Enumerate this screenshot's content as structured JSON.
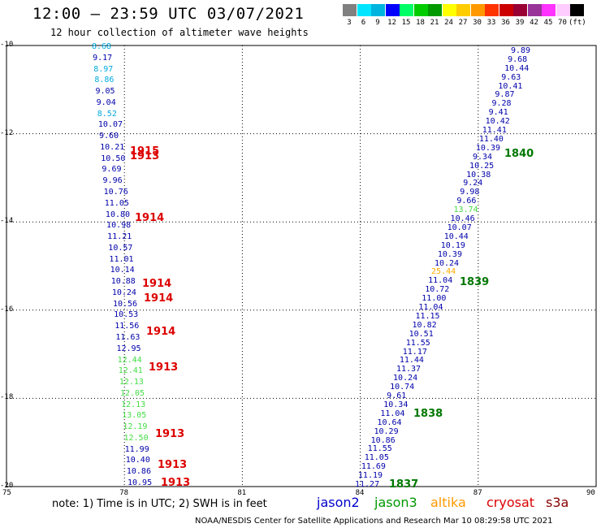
{
  "title": "12:00 – 23:59 UTC 03/07/2021",
  "subtitle": "12 hour collection of altimeter wave heights",
  "scale": {
    "boxes": [
      {
        "color": "#808080",
        "label": "3"
      },
      {
        "color": "#00e5ff",
        "label": "6"
      },
      {
        "color": "#00b4e0",
        "label": "9"
      },
      {
        "color": "#0000ff",
        "label": "12"
      },
      {
        "color": "#00ff66",
        "label": "15"
      },
      {
        "color": "#00cc00",
        "label": "18"
      },
      {
        "color": "#009900",
        "label": "21"
      },
      {
        "color": "#ffff00",
        "label": "24"
      },
      {
        "color": "#ffcc00",
        "label": "27"
      },
      {
        "color": "#ff9900",
        "label": "30"
      },
      {
        "color": "#ff3300",
        "label": "33"
      },
      {
        "color": "#cc0000",
        "label": "36"
      },
      {
        "color": "#990033",
        "label": "39"
      },
      {
        "color": "#993399",
        "label": "42"
      },
      {
        "color": "#ff33ff",
        "label": "45"
      },
      {
        "color": "#ffccff",
        "label": "70"
      },
      {
        "color": "#000000",
        "label": "(ft)"
      }
    ]
  },
  "axes": {
    "y_ticks": [
      "-10",
      "-12",
      "-14",
      "-16",
      "-18",
      "-20"
    ],
    "x_ticks": [
      "75",
      "78",
      "81",
      "84",
      "87",
      "90"
    ]
  },
  "note": "note: 1) Time is in UTC; 2) SWH is in feet",
  "legend": [
    {
      "label": "jason2",
      "color": "#0000cc"
    },
    {
      "label": "jason3",
      "color": "#009900"
    },
    {
      "label": "altika",
      "color": "#ff9900"
    },
    {
      "label": "cryosat",
      "color": "#dd0000"
    },
    {
      "label": "s3a",
      "color": "#880000"
    }
  ],
  "credit": "NOAA/NESDIS Center for Satellite Applications and Research    Mar 10 08:29:58 UTC 2021",
  "chart_data": {
    "type": "scatter",
    "xlim": [
      75,
      90
    ],
    "ylim": [
      -20,
      -10
    ],
    "grid": true,
    "left_track": [
      {
        "v": "8.68",
        "c": "#00aadd"
      },
      {
        "v": "9.17",
        "c": "#0000aa"
      },
      {
        "v": "8.97",
        "c": "#00aadd"
      },
      {
        "v": "8.86",
        "c": "#00aadd"
      },
      {
        "v": "9.05",
        "c": "#0000aa"
      },
      {
        "v": "9.04",
        "c": "#0000aa"
      },
      {
        "v": "8.52",
        "c": "#00aadd"
      },
      {
        "v": "10.07",
        "c": "#0000aa"
      },
      {
        "v": "9.60",
        "c": "#0000aa"
      },
      {
        "v": "10.21",
        "c": "#0000aa"
      },
      {
        "v": "10.50",
        "c": "#0000aa"
      },
      {
        "v": "9.69",
        "c": "#0000aa"
      },
      {
        "v": "9.96",
        "c": "#0000aa"
      },
      {
        "v": "10.76",
        "c": "#0000aa"
      },
      {
        "v": "11.05",
        "c": "#0000aa"
      },
      {
        "v": "10.80",
        "c": "#0000aa"
      },
      {
        "v": "10.98",
        "c": "#0000aa"
      },
      {
        "v": "11.21",
        "c": "#0000aa"
      },
      {
        "v": "10.57",
        "c": "#0000aa"
      },
      {
        "v": "11.01",
        "c": "#0000aa"
      },
      {
        "v": "10.14",
        "c": "#0000aa"
      },
      {
        "v": "10.88",
        "c": "#0000aa"
      },
      {
        "v": "10.24",
        "c": "#0000aa"
      },
      {
        "v": "10.56",
        "c": "#0000aa"
      },
      {
        "v": "10.53",
        "c": "#0000aa"
      },
      {
        "v": "11.56",
        "c": "#0000aa"
      },
      {
        "v": "11.63",
        "c": "#0000aa"
      },
      {
        "v": "12.95",
        "c": "#0000aa"
      },
      {
        "v": "12.44",
        "c": "#44dd44"
      },
      {
        "v": "12.41",
        "c": "#44dd44"
      },
      {
        "v": "12.13",
        "c": "#44dd44"
      },
      {
        "v": "12.05",
        "c": "#44dd44"
      },
      {
        "v": "12.13",
        "c": "#44dd44"
      },
      {
        "v": "13.05",
        "c": "#44dd44"
      },
      {
        "v": "12.19",
        "c": "#44dd44"
      },
      {
        "v": "12.50",
        "c": "#44dd44"
      },
      {
        "v": "11.99",
        "c": "#0000aa"
      },
      {
        "v": "10.40",
        "c": "#0000aa"
      },
      {
        "v": "10.86",
        "c": "#0000aa"
      },
      {
        "v": "10.95",
        "c": "#0000aa"
      }
    ],
    "right_track": [
      {
        "v": "9.89",
        "c": "#0000aa"
      },
      {
        "v": "9.68",
        "c": "#0000aa"
      },
      {
        "v": "10.44",
        "c": "#0000aa"
      },
      {
        "v": "9.63",
        "c": "#0000aa"
      },
      {
        "v": "10.41",
        "c": "#0000aa"
      },
      {
        "v": "9.87",
        "c": "#0000aa"
      },
      {
        "v": "9.28",
        "c": "#0000aa"
      },
      {
        "v": "9.41",
        "c": "#0000aa"
      },
      {
        "v": "10.42",
        "c": "#0000aa"
      },
      {
        "v": "11.41",
        "c": "#0000aa"
      },
      {
        "v": "11.40",
        "c": "#0000aa"
      },
      {
        "v": "10.39",
        "c": "#0000aa"
      },
      {
        "v": "9.34",
        "c": "#0000aa"
      },
      {
        "v": "10.25",
        "c": "#0000aa"
      },
      {
        "v": "10.38",
        "c": "#0000aa"
      },
      {
        "v": "9.24",
        "c": "#0000aa"
      },
      {
        "v": "9.98",
        "c": "#0000aa"
      },
      {
        "v": "9.66",
        "c": "#0000aa"
      },
      {
        "v": "13.74",
        "c": "#44dd44"
      },
      {
        "v": "10.46",
        "c": "#0000aa"
      },
      {
        "v": "10.07",
        "c": "#0000aa"
      },
      {
        "v": "10.44",
        "c": "#0000aa"
      },
      {
        "v": "10.19",
        "c": "#0000aa"
      },
      {
        "v": "10.39",
        "c": "#0000aa"
      },
      {
        "v": "10.24",
        "c": "#0000aa"
      },
      {
        "v": "25.44",
        "c": "#ffaa00"
      },
      {
        "v": "11.04",
        "c": "#0000aa"
      },
      {
        "v": "10.72",
        "c": "#0000aa"
      },
      {
        "v": "11.00",
        "c": "#0000aa"
      },
      {
        "v": "11.04",
        "c": "#0000aa"
      },
      {
        "v": "11.15",
        "c": "#0000aa"
      },
      {
        "v": "10.82",
        "c": "#0000aa"
      },
      {
        "v": "10.51",
        "c": "#0000aa"
      },
      {
        "v": "11.55",
        "c": "#0000aa"
      },
      {
        "v": "11.17",
        "c": "#0000aa"
      },
      {
        "v": "11.44",
        "c": "#0000aa"
      },
      {
        "v": "11.37",
        "c": "#0000aa"
      },
      {
        "v": "10.24",
        "c": "#0000aa"
      },
      {
        "v": "10.74",
        "c": "#0000aa"
      },
      {
        "v": "9.61",
        "c": "#0000aa"
      },
      {
        "v": "10.34",
        "c": "#0000aa"
      },
      {
        "v": "11.04",
        "c": "#0000aa"
      },
      {
        "v": "10.64",
        "c": "#0000aa"
      },
      {
        "v": "10.29",
        "c": "#0000aa"
      },
      {
        "v": "10.86",
        "c": "#0000aa"
      },
      {
        "v": "11.55",
        "c": "#0000aa"
      },
      {
        "v": "11.05",
        "c": "#0000aa"
      },
      {
        "v": "11.69",
        "c": "#0000aa"
      },
      {
        "v": "11.19",
        "c": "#0000aa"
      },
      {
        "v": "11.27",
        "c": "#0000aa"
      }
    ],
    "time_tags": [
      {
        "t": "1915",
        "c": "#dd0000"
      },
      {
        "t": "1913",
        "c": "#dd0000"
      },
      {
        "t": "1914",
        "c": "#dd0000"
      },
      {
        "t": "1914",
        "c": "#dd0000"
      },
      {
        "t": "1914",
        "c": "#dd0000"
      },
      {
        "t": "1914",
        "c": "#dd0000"
      },
      {
        "t": "1913",
        "c": "#dd0000"
      },
      {
        "t": "1913",
        "c": "#dd0000"
      },
      {
        "t": "1913",
        "c": "#dd0000"
      },
      {
        "t": "1913",
        "c": "#dd0000"
      },
      {
        "t": "1840",
        "c": "#007700"
      },
      {
        "t": "1839",
        "c": "#007700"
      },
      {
        "t": "1838",
        "c": "#007700"
      },
      {
        "t": "1837",
        "c": "#007700"
      }
    ]
  }
}
